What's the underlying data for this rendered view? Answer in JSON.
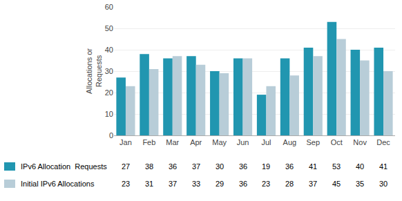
{
  "chart_data": {
    "type": "bar",
    "categories": [
      "Jan",
      "Feb",
      "Mar",
      "Apr",
      "May",
      "Jun",
      "Jul",
      "Aug",
      "Sep",
      "Oct",
      "Nov",
      "Dec"
    ],
    "series": [
      {
        "name": "IPv6 Allocation  Requests",
        "color": "#2196b0",
        "values": [
          27,
          38,
          36,
          37,
          30,
          36,
          19,
          36,
          41,
          53,
          40,
          41
        ]
      },
      {
        "name": "Initial IPv6 Allocations",
        "color": "#b8cdd8",
        "values": [
          23,
          31,
          37,
          33,
          29,
          36,
          23,
          28,
          37,
          45,
          35,
          30
        ]
      }
    ],
    "ylabel": "Allocations or\nRequests",
    "ylim": [
      0,
      60
    ],
    "yticks": [
      0,
      10,
      20,
      30,
      40,
      50,
      60
    ],
    "grid": true,
    "data_labels": true
  }
}
